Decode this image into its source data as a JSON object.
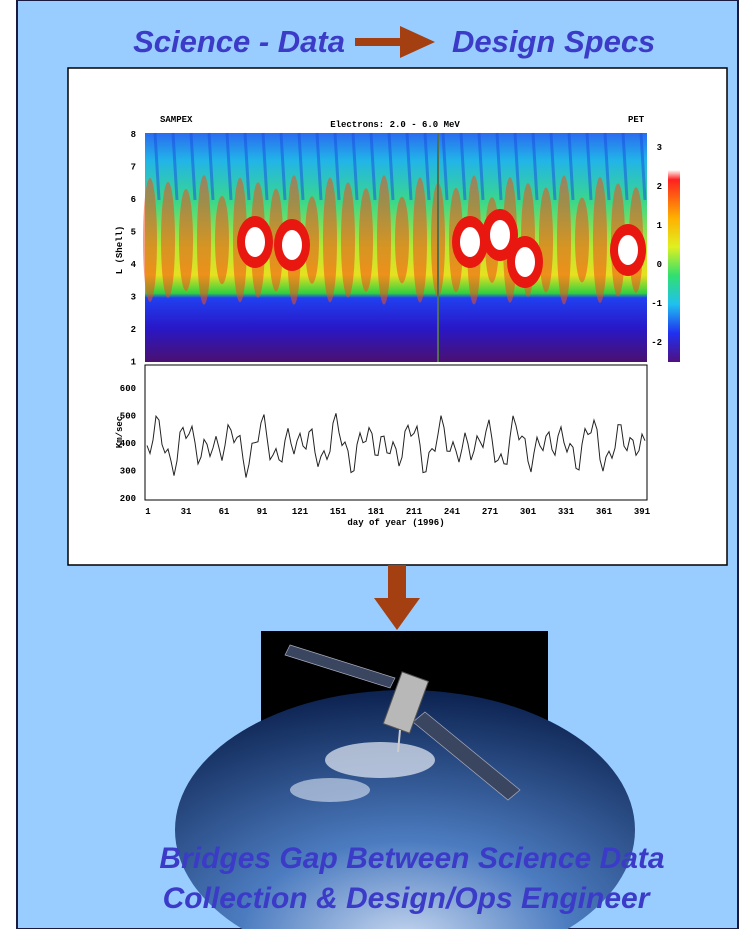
{
  "title": {
    "left": "Science - Data",
    "right": "Design Specs"
  },
  "figure": {
    "instrument": "SAMPEX",
    "title": "Electrons: 2.0 - 6.0 MeV",
    "tag": "PET",
    "top_ylabel": "L (Shell)",
    "top_yticks": [
      "8",
      "7",
      "6",
      "5",
      "4",
      "3",
      "2",
      "1"
    ],
    "colorbar_ticks": [
      "3",
      "2",
      "1",
      "0",
      "-1",
      "-2"
    ],
    "bottom_ylabel": "Km/sec",
    "bottom_yticks": [
      "600",
      "500",
      "400",
      "300",
      "200"
    ],
    "xticks": [
      "1",
      "31",
      "61",
      "91",
      "121",
      "151",
      "181",
      "211",
      "241",
      "271",
      "301",
      "331",
      "361",
      "391"
    ],
    "xlabel": "day of year (1996)"
  },
  "caption": [
    "Bridges Gap Between Science Data",
    "Collection & Design/Ops Engineer"
  ]
}
